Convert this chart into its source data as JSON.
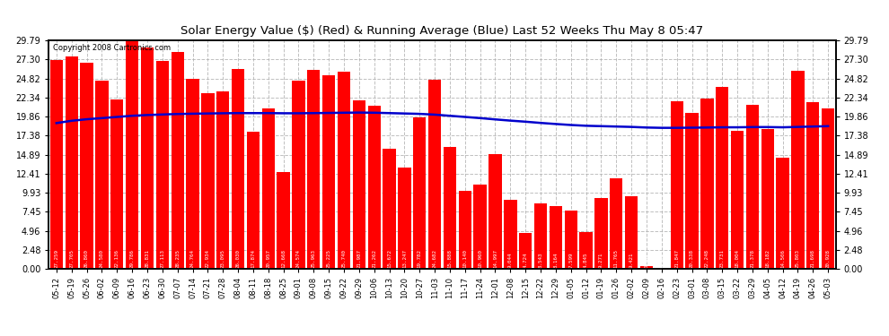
{
  "title": "Solar Energy Value ($) (Red) & Running Average (Blue) Last 52 Weeks Thu May 8 05:47",
  "copyright": "Copyright 2008 Cartronics.com",
  "bar_color": "#ff0000",
  "line_color": "#0000cc",
  "background_color": "#ffffff",
  "plot_bg_color": "#ffffff",
  "grid_color": "#b0b0b0",
  "ylim": [
    0.0,
    29.79
  ],
  "yticks": [
    0.0,
    2.48,
    4.96,
    7.45,
    9.93,
    12.41,
    14.89,
    17.38,
    19.86,
    22.34,
    24.82,
    27.3,
    29.79
  ],
  "categories": [
    "05-12",
    "05-19",
    "05-26",
    "06-02",
    "06-09",
    "06-16",
    "06-23",
    "06-30",
    "07-07",
    "07-14",
    "07-21",
    "07-28",
    "08-04",
    "08-11",
    "08-18",
    "08-25",
    "09-01",
    "09-08",
    "09-15",
    "09-22",
    "09-29",
    "10-06",
    "10-13",
    "10-20",
    "10-27",
    "11-03",
    "11-10",
    "11-17",
    "11-24",
    "12-01",
    "12-08",
    "12-15",
    "12-22",
    "12-29",
    "01-05",
    "01-12",
    "01-19",
    "01-26",
    "02-02",
    "02-09",
    "02-16",
    "02-23",
    "03-01",
    "03-08",
    "03-15",
    "03-22",
    "03-29",
    "04-05",
    "04-12",
    "04-19",
    "04-26",
    "05-03"
  ],
  "values": [
    27.259,
    27.705,
    26.86,
    24.58,
    22.136,
    29.786,
    28.831,
    27.113,
    28.235,
    24.764,
    22.934,
    23.095,
    26.03,
    17.874,
    20.957,
    12.668,
    24.574,
    25.963,
    25.225,
    25.74,
    21.987,
    21.262,
    15.672,
    13.247,
    19.782,
    24.682,
    15.888,
    10.14,
    10.96,
    14.997,
    9.044,
    4.724,
    8.543,
    8.164,
    7.599,
    4.845,
    9.271,
    11.765,
    9.421,
    0.317,
    0.0,
    21.847,
    20.338,
    22.248,
    23.731,
    18.004,
    21.378,
    18.182,
    14.506,
    25.803,
    21.698,
    20.928
  ],
  "running_avg": [
    19.0,
    19.3,
    19.5,
    19.65,
    19.8,
    19.95,
    20.05,
    20.12,
    20.18,
    20.22,
    20.25,
    20.28,
    20.3,
    20.3,
    20.3,
    20.28,
    20.28,
    20.3,
    20.32,
    20.35,
    20.37,
    20.35,
    20.3,
    20.25,
    20.2,
    20.1,
    19.95,
    19.8,
    19.65,
    19.48,
    19.32,
    19.18,
    19.02,
    18.88,
    18.75,
    18.65,
    18.6,
    18.55,
    18.5,
    18.42,
    18.38,
    18.38,
    18.4,
    18.42,
    18.45,
    18.45,
    18.48,
    18.48,
    18.45,
    18.5,
    18.55,
    18.6
  ]
}
